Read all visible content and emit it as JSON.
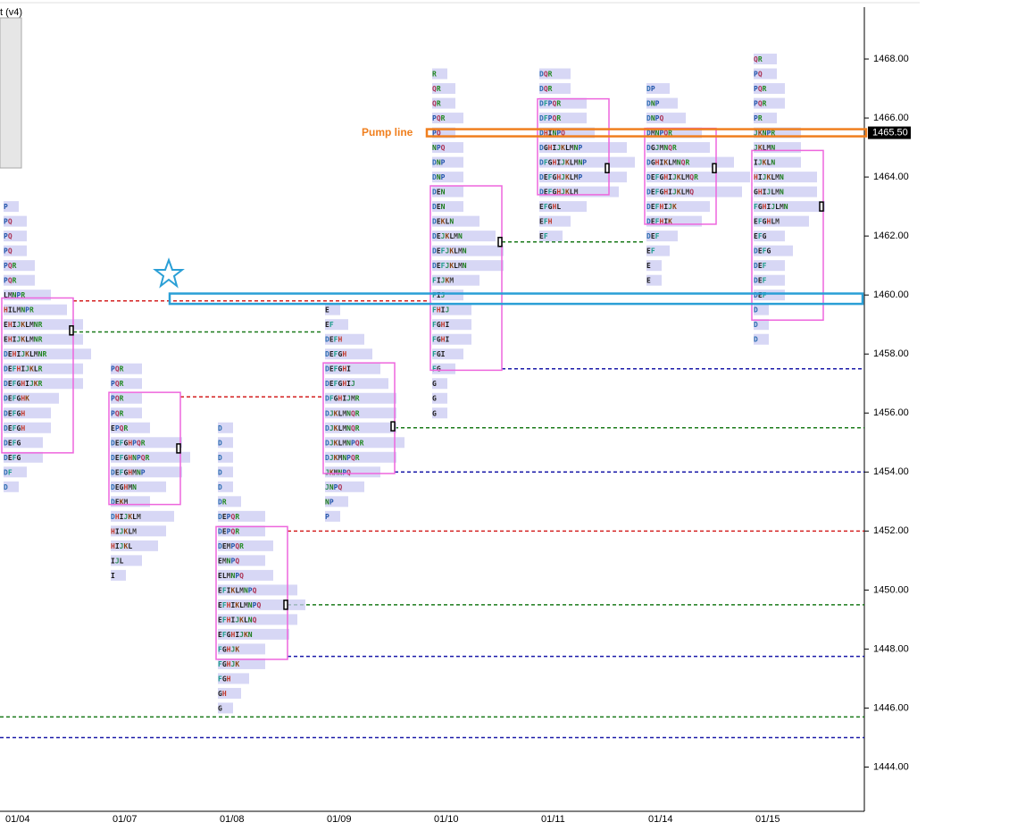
{
  "chart_data": {
    "type": "market-profile",
    "title": "t (v4)",
    "ylim": [
      1442.5,
      1470
    ],
    "yticks": [
      {
        "value": 1444,
        "label": "1444.00"
      },
      {
        "value": 1446,
        "label": "1446.00"
      },
      {
        "value": 1448,
        "label": "1448.00"
      },
      {
        "value": 1450,
        "label": "1450.00"
      },
      {
        "value": 1452,
        "label": "1452.00"
      },
      {
        "value": 1454,
        "label": "1454.00"
      },
      {
        "value": 1456,
        "label": "1456.00"
      },
      {
        "value": 1458,
        "label": "1458.00"
      },
      {
        "value": 1460,
        "label": "1460.00"
      },
      {
        "value": 1462,
        "label": "1462.00"
      },
      {
        "value": 1464,
        "label": "1464.00"
      },
      {
        "value": 1466,
        "label": "1466.00"
      },
      {
        "value": 1468,
        "label": "1468.00"
      }
    ],
    "categories": [
      "01/04",
      "01/07",
      "01/08",
      "01/09",
      "01/10",
      "01/11",
      "01/14",
      "01/15"
    ],
    "profiles": [
      {
        "va": [
          1454.65,
          1459.9
        ],
        "poc": 1458.8,
        "rows": [
          {
            "price": 1463,
            "tpo": "P"
          },
          {
            "price": 1462.5,
            "tpo": "PQ"
          },
          {
            "price": 1462,
            "tpo": "PQ"
          },
          {
            "price": 1461.5,
            "tpo": "PQ"
          },
          {
            "price": 1461,
            "tpo": "PQR"
          },
          {
            "price": 1460.5,
            "tpo": "PQR"
          },
          {
            "price": 1460,
            "tpo": "LMNPR"
          },
          {
            "price": 1459.5,
            "tpo": "HILMNPR"
          },
          {
            "price": 1459,
            "tpo": "EHIJKLMNR"
          },
          {
            "price": 1458.5,
            "tpo": "EHIJKLMNR"
          },
          {
            "price": 1458,
            "tpo": "DEHIJKLMNR"
          },
          {
            "price": 1457.5,
            "tpo": "DEFHIJKLR"
          },
          {
            "price": 1457,
            "tpo": "DEFGHIJKR"
          },
          {
            "price": 1456.5,
            "tpo": "DEFGHK"
          },
          {
            "price": 1456,
            "tpo": "DEFGH"
          },
          {
            "price": 1455.5,
            "tpo": "DEFGH"
          },
          {
            "price": 1455,
            "tpo": "DEFG"
          },
          {
            "price": 1454.5,
            "tpo": "DEFG"
          },
          {
            "price": 1454,
            "tpo": "DF"
          },
          {
            "price": 1453.5,
            "tpo": "D"
          }
        ]
      },
      {
        "va": [
          1452.9,
          1456.7
        ],
        "poc": 1454.8,
        "rows": [
          {
            "price": 1457.5,
            "tpo": "PQR"
          },
          {
            "price": 1457,
            "tpo": "PQR"
          },
          {
            "price": 1456.5,
            "tpo": "PQR"
          },
          {
            "price": 1456,
            "tpo": "PQR"
          },
          {
            "price": 1455.5,
            "tpo": "EPQR"
          },
          {
            "price": 1455,
            "tpo": "DEFGHPQR"
          },
          {
            "price": 1454.5,
            "tpo": "DEFGHNPQR"
          },
          {
            "price": 1454,
            "tpo": "DEFGHMNP"
          },
          {
            "price": 1453.5,
            "tpo": "DEGHMN"
          },
          {
            "price": 1453,
            "tpo": "DEKM"
          },
          {
            "price": 1452.5,
            "tpo": "DHIJKLM"
          },
          {
            "price": 1452,
            "tpo": "HIJKLM"
          },
          {
            "price": 1451.5,
            "tpo": "HIJKL"
          },
          {
            "price": 1451,
            "tpo": "IJL"
          },
          {
            "price": 1450.5,
            "tpo": "I"
          }
        ]
      },
      {
        "va": [
          1447.65,
          1452.15
        ],
        "poc": 1449.5,
        "rows": [
          {
            "price": 1455.5,
            "tpo": "D"
          },
          {
            "price": 1455,
            "tpo": "D"
          },
          {
            "price": 1454.5,
            "tpo": "D"
          },
          {
            "price": 1454,
            "tpo": "D"
          },
          {
            "price": 1453.5,
            "tpo": "D"
          },
          {
            "price": 1453,
            "tpo": "DR"
          },
          {
            "price": 1452.5,
            "tpo": "DEPQR"
          },
          {
            "price": 1452,
            "tpo": "DEPQR"
          },
          {
            "price": 1451.5,
            "tpo": "DEMPQR"
          },
          {
            "price": 1451,
            "tpo": "EMNPQ"
          },
          {
            "price": 1450.5,
            "tpo": "ELMNPQ"
          },
          {
            "price": 1450,
            "tpo": "EFIKLMNPQ"
          },
          {
            "price": 1449.5,
            "tpo": "EFHIKLMNPQ"
          },
          {
            "price": 1449,
            "tpo": "EFHIJKLNQ"
          },
          {
            "price": 1448.5,
            "tpo": "EFGHIJKN"
          },
          {
            "price": 1448,
            "tpo": "FGHJK"
          },
          {
            "price": 1447.5,
            "tpo": "FGHJK"
          },
          {
            "price": 1447,
            "tpo": "FGH"
          },
          {
            "price": 1446.5,
            "tpo": "GH"
          },
          {
            "price": 1446,
            "tpo": "G"
          }
        ]
      },
      {
        "va": [
          1453.95,
          1457.7
        ],
        "poc": 1455.55,
        "rows": [
          {
            "price": 1459.5,
            "tpo": "E"
          },
          {
            "price": 1459,
            "tpo": "EF"
          },
          {
            "price": 1458.5,
            "tpo": "DEFH"
          },
          {
            "price": 1458,
            "tpo": "DEFGH"
          },
          {
            "price": 1457.5,
            "tpo": "DEFGHI"
          },
          {
            "price": 1457,
            "tpo": "DEFGHIJ"
          },
          {
            "price": 1456.5,
            "tpo": "DFGHIJMR"
          },
          {
            "price": 1456,
            "tpo": "DJKLMNQR"
          },
          {
            "price": 1455.5,
            "tpo": "DJKLMNQR"
          },
          {
            "price": 1455,
            "tpo": "DJKLMNPQR"
          },
          {
            "price": 1454.5,
            "tpo": "DJKMNPQR"
          },
          {
            "price": 1454,
            "tpo": "JKMNPQ"
          },
          {
            "price": 1453.5,
            "tpo": "JNPQ"
          },
          {
            "price": 1453,
            "tpo": "NP"
          },
          {
            "price": 1452.5,
            "tpo": "P"
          }
        ]
      },
      {
        "va": [
          1457.45,
          1463.7
        ],
        "poc": 1461.8,
        "rows": [
          {
            "price": 1467.5,
            "tpo": "R"
          },
          {
            "price": 1467,
            "tpo": "QR"
          },
          {
            "price": 1466.5,
            "tpo": "QR"
          },
          {
            "price": 1466,
            "tpo": "PQR"
          },
          {
            "price": 1465.5,
            "tpo": "PQ"
          },
          {
            "price": 1465,
            "tpo": "NPQ"
          },
          {
            "price": 1464.5,
            "tpo": "DNP"
          },
          {
            "price": 1464,
            "tpo": "DNP"
          },
          {
            "price": 1463.5,
            "tpo": "DEN"
          },
          {
            "price": 1463,
            "tpo": "DEN"
          },
          {
            "price": 1462.5,
            "tpo": "DEKLN"
          },
          {
            "price": 1462,
            "tpo": "DEJKLMN"
          },
          {
            "price": 1461.5,
            "tpo": "DEFJKLMN"
          },
          {
            "price": 1461,
            "tpo": "DEFJKLMN"
          },
          {
            "price": 1460.5,
            "tpo": "FIJKM"
          },
          {
            "price": 1460,
            "tpo": "FIJ"
          },
          {
            "price": 1459.5,
            "tpo": "FHIJ"
          },
          {
            "price": 1459,
            "tpo": "FGHI"
          },
          {
            "price": 1458.5,
            "tpo": "FGHI"
          },
          {
            "price": 1458,
            "tpo": "FGI"
          },
          {
            "price": 1457.5,
            "tpo": "FG"
          },
          {
            "price": 1457,
            "tpo": "G"
          },
          {
            "price": 1456.5,
            "tpo": "G"
          },
          {
            "price": 1456,
            "tpo": "G"
          }
        ]
      },
      {
        "va": [
          1463.4,
          1466.65
        ],
        "poc": 1464.3,
        "rows": [
          {
            "price": 1467.5,
            "tpo": "DQR"
          },
          {
            "price": 1467,
            "tpo": "DQR"
          },
          {
            "price": 1466.5,
            "tpo": "DFPQR"
          },
          {
            "price": 1466,
            "tpo": "DFPQR"
          },
          {
            "price": 1465.5,
            "tpo": "DHINPQ"
          },
          {
            "price": 1465,
            "tpo": "DGHIJKLMNP"
          },
          {
            "price": 1464.5,
            "tpo": "DFGHIJKLMNP"
          },
          {
            "price": 1464,
            "tpo": "DEFGHJKLMP"
          },
          {
            "price": 1463.5,
            "tpo": "DEFGHJKLM"
          },
          {
            "price": 1463,
            "tpo": "EFGHL"
          },
          {
            "price": 1462.5,
            "tpo": "EFH"
          },
          {
            "price": 1462,
            "tpo": "EF"
          }
        ]
      },
      {
        "va": [
          1462.4,
          1465.65
        ],
        "poc": 1464.3,
        "rows": [
          {
            "price": 1467,
            "tpo": "DP"
          },
          {
            "price": 1466.5,
            "tpo": "DNP"
          },
          {
            "price": 1466,
            "tpo": "DNPQ"
          },
          {
            "price": 1465.5,
            "tpo": "DMNPQR"
          },
          {
            "price": 1465,
            "tpo": "DGJMNQR"
          },
          {
            "price": 1464.5,
            "tpo": "DGHIKLMNQR"
          },
          {
            "price": 1464,
            "tpo": "DEFGHIJKLMQR"
          },
          {
            "price": 1463.5,
            "tpo": "DEFGHIJKLMQ"
          },
          {
            "price": 1463,
            "tpo": "DEFHIJK"
          },
          {
            "price": 1462.5,
            "tpo": "DEFHIK"
          },
          {
            "price": 1462,
            "tpo": "DEF"
          },
          {
            "price": 1461.5,
            "tpo": "EF"
          },
          {
            "price": 1461,
            "tpo": "E"
          },
          {
            "price": 1460.5,
            "tpo": "E"
          }
        ]
      },
      {
        "va": [
          1459.15,
          1464.9
        ],
        "poc": 1463,
        "rows": [
          {
            "price": 1468,
            "tpo": "QR"
          },
          {
            "price": 1467.5,
            "tpo": "PQ"
          },
          {
            "price": 1467,
            "tpo": "PQR"
          },
          {
            "price": 1466.5,
            "tpo": "PQR"
          },
          {
            "price": 1466,
            "tpo": "PR"
          },
          {
            "price": 1465.5,
            "tpo": "JKNPR"
          },
          {
            "price": 1465,
            "tpo": "JKLMN"
          },
          {
            "price": 1464.5,
            "tpo": "IJKLN"
          },
          {
            "price": 1464,
            "tpo": "HIJKLMN"
          },
          {
            "price": 1463.5,
            "tpo": "GHIJLMN"
          },
          {
            "price": 1463,
            "tpo": "FGHIJLMN"
          },
          {
            "price": 1462.5,
            "tpo": "EFGHLM"
          },
          {
            "price": 1462,
            "tpo": "EFG"
          },
          {
            "price": 1461.5,
            "tpo": "DEFG"
          },
          {
            "price": 1461,
            "tpo": "DEF"
          },
          {
            "price": 1460.5,
            "tpo": "DEF"
          },
          {
            "price": 1460,
            "tpo": "DEF"
          },
          {
            "price": 1459.5,
            "tpo": "D"
          },
          {
            "price": 1459,
            "tpo": "D"
          },
          {
            "price": 1458.5,
            "tpo": "D"
          }
        ]
      }
    ],
    "levels": [
      {
        "price": 1459.8,
        "color": "#d42020",
        "from": "01/04",
        "to": "01/10"
      },
      {
        "price": 1458.75,
        "color": "#1a7a1a",
        "from": "01/04",
        "to": "01/09"
      },
      {
        "price": 1456.55,
        "color": "#d42020",
        "from": "01/07",
        "to": "01/09"
      },
      {
        "price": 1455.5,
        "color": "#1a7a1a",
        "from": "01/09",
        "to": null
      },
      {
        "price": 1454,
        "color": "#1a1aa8",
        "from": "01/09",
        "to": null
      },
      {
        "price": 1452,
        "color": "#d42020",
        "from": "01/08",
        "to": null
      },
      {
        "price": 1449.5,
        "color": "#1a7a1a",
        "from": "01/08",
        "to": null
      },
      {
        "price": 1447.75,
        "color": "#1a1aa8",
        "from": "01/08",
        "to": null
      },
      {
        "price": 1445.7,
        "color": "#1a7a1a",
        "from": null,
        "to": null
      },
      {
        "price": 1445,
        "color": "#1a1aa8",
        "from": null,
        "to": null
      },
      {
        "price": 1457.5,
        "color": "#1a1aa8",
        "from": "01/10",
        "to": null
      },
      {
        "price": 1461.8,
        "color": "#1a7a1a",
        "from": "01/10",
        "to": "01/14"
      }
    ],
    "zone": {
      "low": 1459.7,
      "high": 1460.05,
      "color": "#2a9fd6"
    },
    "pump_line": {
      "label": "Pump line",
      "value": 1465.5,
      "value_label": "1465.50",
      "color": "#f07f1e"
    }
  }
}
